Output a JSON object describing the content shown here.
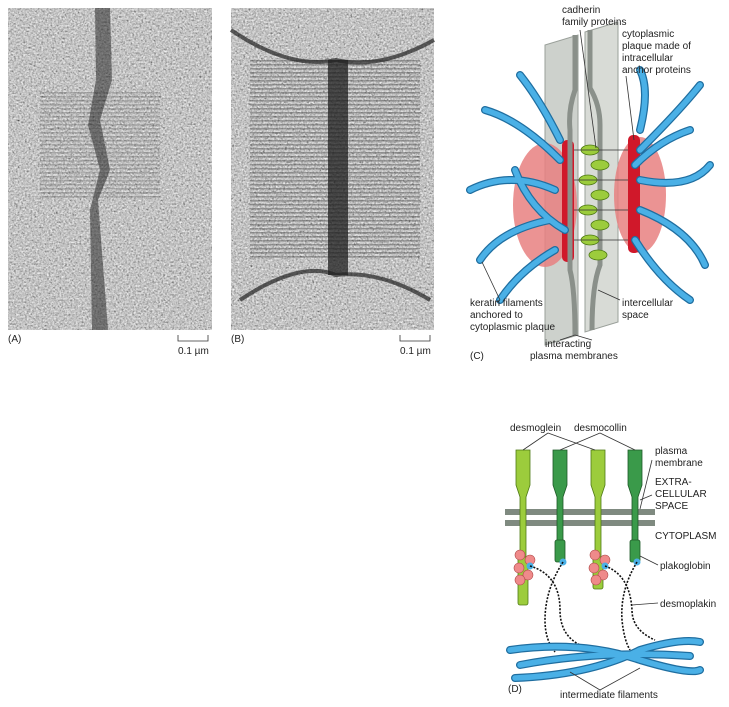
{
  "panel_a": {
    "label": "(A)",
    "scale": "0.1 µm"
  },
  "panel_b": {
    "label": "(B)",
    "scale": "0.1 µm"
  },
  "panel_c": {
    "label": "(C)",
    "annotations": [
      [
        "cadherin",
        "family proteins"
      ],
      [
        "cytoplasmic",
        "plaque made of",
        "intracellular",
        "anchor proteins"
      ],
      [
        "keratin filaments",
        "anchored to",
        "cytoplasmic plaque"
      ],
      [
        "intercellular",
        "space"
      ],
      [
        "interacting",
        "plasma membranes"
      ]
    ]
  },
  "panel_d": {
    "label": "(D)",
    "annotations": [
      [
        "desmoglein"
      ],
      [
        "desmocollin"
      ],
      [
        "plasma",
        "membrane"
      ],
      [
        "EXTRA-",
        "CELLULAR",
        "SPACE"
      ],
      [
        "CYTOPLASM"
      ],
      [
        "plakoglobin"
      ],
      [
        "desmoplakin"
      ],
      [
        "intermediate filaments"
      ]
    ]
  }
}
